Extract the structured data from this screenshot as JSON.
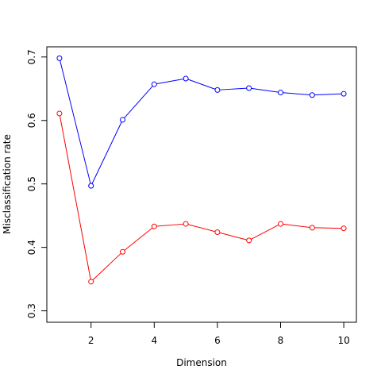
{
  "chart_data": {
    "type": "line",
    "title": "",
    "xlabel": "Dimension",
    "ylabel": "Misclassification rate",
    "xlim": [
      0.6,
      10.4
    ],
    "ylim": [
      0.282,
      0.716
    ],
    "xticks": [
      2,
      4,
      6,
      8,
      10
    ],
    "yticks": [
      0.3,
      0.4,
      0.5,
      0.6,
      0.7
    ],
    "x": [
      1,
      2,
      3,
      4,
      5,
      6,
      7,
      8,
      9,
      10
    ],
    "series": [
      {
        "color": "#0000ff",
        "values": [
          0.698,
          0.497,
          0.601,
          0.657,
          0.666,
          0.648,
          0.651,
          0.644,
          0.64,
          0.642
        ]
      },
      {
        "color": "#ff0000",
        "values": [
          0.611,
          0.346,
          0.393,
          0.433,
          0.437,
          0.424,
          0.411,
          0.437,
          0.431,
          0.43
        ]
      }
    ],
    "legend": "none",
    "grid": false
  }
}
